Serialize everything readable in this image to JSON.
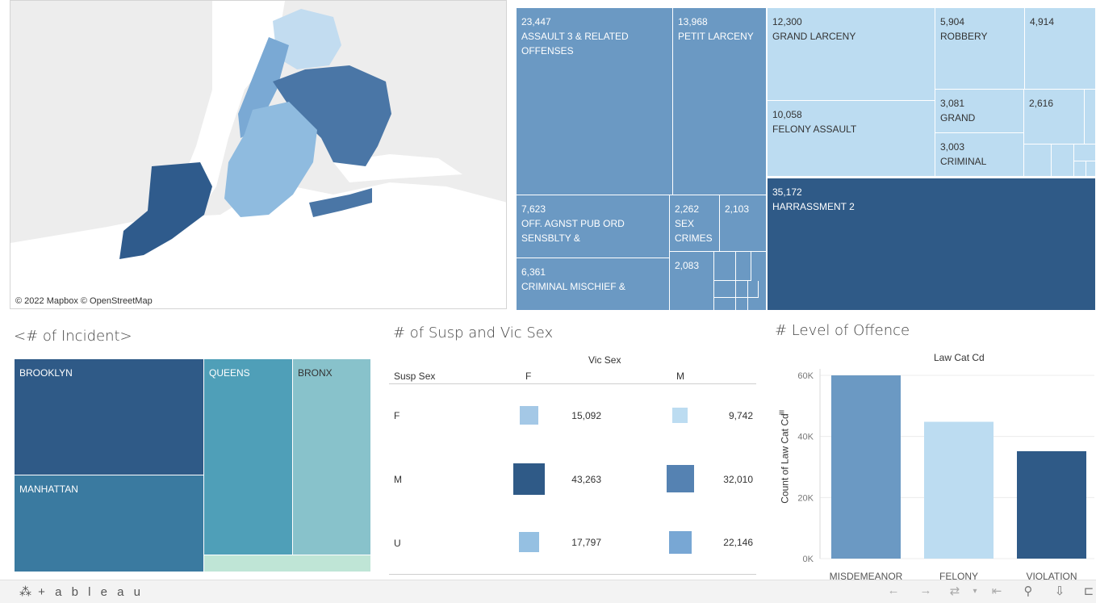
{
  "map": {
    "attribution": "© 2022 Mapbox © OpenStreetMap",
    "colors": {
      "water": "#ffffff",
      "land": "#e6e6e6",
      "bronx": "#c2dcf0",
      "manhattan": "#7aa9d4",
      "queens": "#4a76a6",
      "brooklyn": "#8fbbdf",
      "staten_island": "#2f5b8c"
    }
  },
  "offense_treemap": {
    "tiles": [
      {
        "value": "23,447",
        "label1": "ASSAULT 3 & RELATED",
        "label2": "OFFENSES",
        "color": "#6b99c3"
      },
      {
        "value": "13,968",
        "label1": "PETIT LARCENY",
        "label2": "",
        "color": "#6b99c3"
      },
      {
        "value": "7,623",
        "label1": "OFF. AGNST PUB ORD",
        "label2": "SENSBLTY &",
        "color": "#6b99c3"
      },
      {
        "value": "2,262",
        "label1": "SEX",
        "label2": "CRIMES",
        "color": "#6b99c3"
      },
      {
        "value": "2,103",
        "label1": "",
        "label2": "",
        "color": "#6b99c3"
      },
      {
        "value": "6,361",
        "label1": "CRIMINAL MISCHIEF &",
        "label2": "",
        "color": "#6b99c3"
      },
      {
        "value": "2,083",
        "label1": "",
        "label2": "",
        "color": "#6b99c3"
      },
      {
        "value": "12,300",
        "label1": "GRAND LARCENY",
        "label2": "",
        "color": "#bcdcf1"
      },
      {
        "value": "5,904",
        "label1": "ROBBERY",
        "label2": "",
        "color": "#bcdcf1"
      },
      {
        "value": "4,914",
        "label1": "",
        "label2": "",
        "color": "#bcdcf1"
      },
      {
        "value": "10,058",
        "label1": "FELONY ASSAULT",
        "label2": "",
        "color": "#bcdcf1"
      },
      {
        "value": "3,081",
        "label1": "GRAND",
        "label2": "",
        "color": "#bcdcf1"
      },
      {
        "value": "2,616",
        "label1": "",
        "label2": "",
        "color": "#bcdcf1"
      },
      {
        "value": "3,003",
        "label1": "CRIMINAL",
        "label2": "",
        "color": "#bcdcf1"
      },
      {
        "value": "35,172",
        "label1": "HARRASSMENT 2",
        "label2": "",
        "color": "#2f5a87"
      }
    ]
  },
  "incident": {
    "title": "<# of Incident>",
    "tiles": [
      {
        "label": "BROOKLYN",
        "color": "#2f5a87"
      },
      {
        "label": "QUEENS",
        "color": "#4f9fb8"
      },
      {
        "label": "BRONX",
        "color": "#88c2cb"
      },
      {
        "label": "MANHATTAN",
        "color": "#3a7aa0"
      },
      {
        "label": "",
        "color": "#bfe5d6"
      }
    ]
  },
  "sex_table": {
    "title": "# of Susp and Vic Sex",
    "col_group": "Vic Sex",
    "row_header": "Susp Sex",
    "cols": [
      "F",
      "M"
    ],
    "rows": [
      {
        "label": "F",
        "values": [
          "15,092",
          "9,742"
        ]
      },
      {
        "label": "M",
        "values": [
          "43,263",
          "32,010"
        ]
      },
      {
        "label": "U",
        "values": [
          "17,797",
          "22,146"
        ]
      }
    ]
  },
  "chart_data": {
    "type": "bar",
    "title": "Law Cat Cd",
    "ylabel": "Count of Law Cat Cd",
    "categories": [
      "MISDEMEANOR",
      "FELONY",
      "VIOLATION"
    ],
    "values": [
      60000,
      44800,
      35172
    ],
    "colors": [
      "#6b99c3",
      "#bcdcf1",
      "#2f5a87"
    ],
    "yticks": [
      "0K",
      "20K",
      "40K",
      "60K"
    ],
    "ylim": [
      0,
      60000
    ],
    "grid": true
  },
  "offence_panel": {
    "title": "# Level of Offence"
  },
  "footer": {
    "brand": "+ a b l e a u"
  }
}
